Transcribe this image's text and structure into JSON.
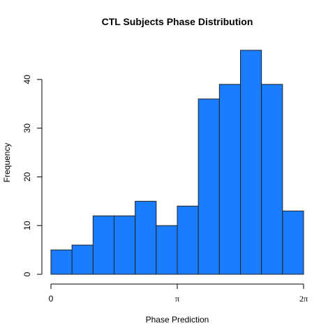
{
  "chart_data": {
    "type": "bar",
    "title": "CTL Subjects Phase Distribution",
    "xlabel": "Phase Prediction",
    "ylabel": "Frequency",
    "bin_edges": [
      0,
      0.5236,
      1.0472,
      1.5708,
      2.0944,
      2.618,
      3.1416,
      3.6652,
      4.1888,
      4.7124,
      5.236,
      5.7596,
      6.2832
    ],
    "values": [
      5,
      6,
      12,
      12,
      15,
      10,
      14,
      36,
      39,
      46,
      39,
      13
    ],
    "xlim": [
      0,
      6.2832
    ],
    "ylim": [
      0,
      46
    ],
    "x_ticks": [
      {
        "value": 0,
        "label": "0"
      },
      {
        "value": 3.1416,
        "label": "π"
      },
      {
        "value": 6.2832,
        "label": "2π"
      }
    ],
    "y_ticks": [
      0,
      10,
      20,
      30,
      40
    ],
    "y_tick_labels": [
      "0",
      "10",
      "20",
      "30",
      "40"
    ],
    "bar_color": "#1a7cff",
    "grid": false,
    "legend": "none"
  }
}
